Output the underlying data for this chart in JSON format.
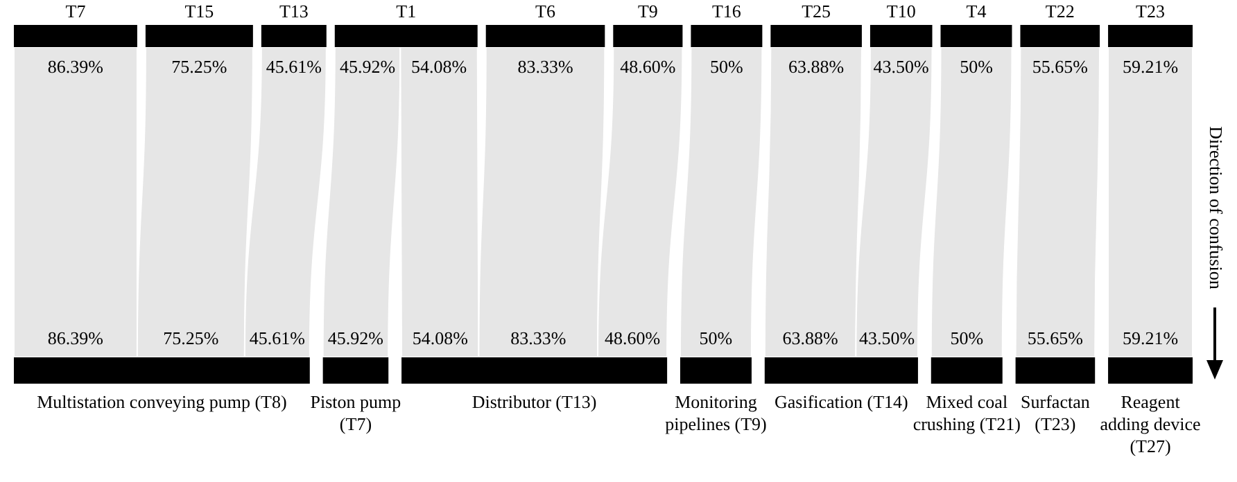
{
  "chart_data": {
    "type": "other",
    "categories": [
      "T7",
      "T15",
      "T13",
      "T1",
      "T6",
      "T9",
      "T16",
      "T25",
      "T10",
      "T4",
      "T22",
      "T23"
    ],
    "series": [
      {
        "name": "Multistation conveying pump (T8)",
        "color": "#e6e6e6",
        "values": [
          86.39,
          75.25,
          45.61,
          null,
          null,
          null,
          null,
          null,
          null,
          null,
          null,
          null
        ],
        "value_labels": [
          "86.39%",
          "75.25%",
          "45.61%",
          null,
          null,
          null,
          null,
          null,
          null,
          null,
          null,
          null
        ]
      },
      {
        "name": "Piston pump (T7)",
        "color": "#e6e6e6",
        "values": [
          null,
          null,
          null,
          45.92,
          null,
          null,
          null,
          null,
          null,
          null,
          null,
          null
        ],
        "value_labels": [
          null,
          null,
          null,
          "45.92%",
          null,
          null,
          null,
          null,
          null,
          null,
          null,
          null
        ]
      },
      {
        "name": "Distributor (T13)",
        "color": "#e6e6e6",
        "values": [
          null,
          null,
          null,
          54.08,
          83.33,
          48.6,
          null,
          null,
          null,
          null,
          null,
          null
        ],
        "value_labels": [
          null,
          null,
          null,
          "54.08%",
          "83.33%",
          "48.60%",
          null,
          null,
          null,
          null,
          null,
          null
        ]
      },
      {
        "name": "Monitoring pipelines (T9)",
        "color": "#e6e6e6",
        "values": [
          null,
          null,
          null,
          null,
          null,
          null,
          50,
          null,
          null,
          null,
          null,
          null
        ],
        "value_labels": [
          null,
          null,
          null,
          null,
          null,
          null,
          "50%",
          null,
          null,
          null,
          null,
          null
        ]
      },
      {
        "name": "Gasification (T14)",
        "color": "#e6e6e6",
        "values": [
          null,
          null,
          null,
          null,
          null,
          null,
          null,
          63.88,
          43.5,
          null,
          null,
          null
        ],
        "value_labels": [
          null,
          null,
          null,
          null,
          null,
          null,
          null,
          "63.88%",
          "43.50%",
          null,
          null,
          null
        ]
      },
      {
        "name": "Mixed coal crushing (T21)",
        "color": "#e6e6e6",
        "values": [
          null,
          null,
          null,
          null,
          null,
          null,
          null,
          null,
          null,
          50,
          null,
          null
        ],
        "value_labels": [
          null,
          null,
          null,
          null,
          null,
          null,
          null,
          null,
          null,
          "50%",
          null,
          null
        ]
      },
      {
        "name": "Surfactan (T23)",
        "color": "#e6e6e6",
        "values": [
          null,
          null,
          null,
          null,
          null,
          null,
          null,
          null,
          null,
          null,
          55.65,
          null
        ],
        "value_labels": [
          null,
          null,
          null,
          null,
          null,
          null,
          null,
          null,
          null,
          null,
          "55.65%",
          null
        ]
      },
      {
        "name": "Reagent adding device (T27)",
        "color": "#e6e6e6",
        "values": [
          null,
          null,
          null,
          null,
          null,
          null,
          null,
          null,
          null,
          null,
          null,
          59.21
        ],
        "value_labels": [
          null,
          null,
          null,
          null,
          null,
          null,
          null,
          null,
          null,
          null,
          null,
          "59.21%"
        ]
      }
    ],
    "annotations": [
      "Direction of confusion"
    ]
  }
}
